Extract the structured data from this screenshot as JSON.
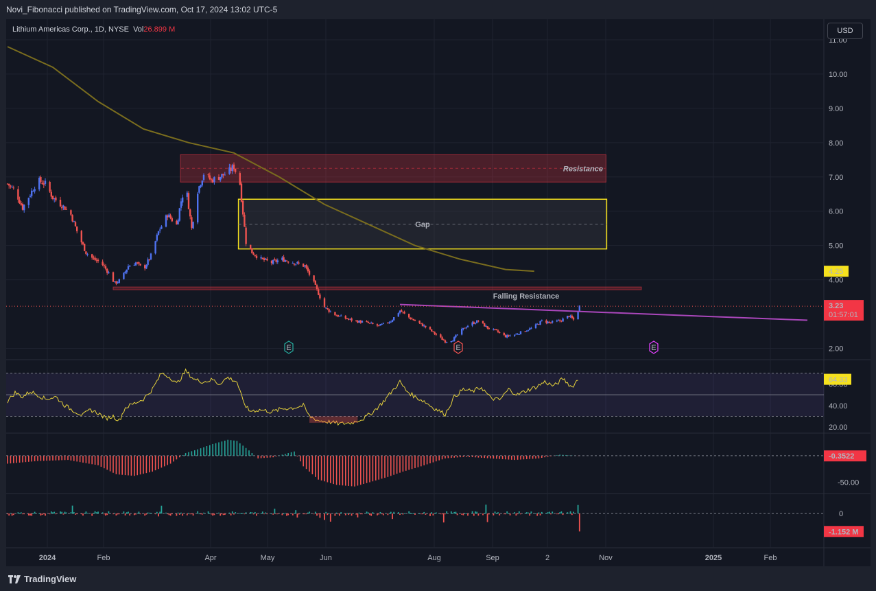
{
  "header": {
    "published": "Novi_Fibonacci published on TradingView.com, Oct 17, 2024 13:02 UTC-5"
  },
  "legend": {
    "symbol": "Lithium Americas Corp., 1D, NYSE",
    "vol_label": "Vol",
    "vol_value": "26.899 M"
  },
  "currency_button": "USD",
  "footer": {
    "logo_text": "TradingView"
  },
  "colors": {
    "up": "#4f72f0",
    "down": "#ef5350",
    "rsi": "#e6d23c",
    "ma": "#7a6d1e",
    "falling_resistance": "#ab47bc",
    "gap_box": "#f5e11e",
    "resistance_box": "#f23645",
    "hist_up": "#26a69a",
    "hist_down": "#ef5350"
  },
  "annotations": {
    "resistance_label": "Resistance",
    "gap_label": "Gap",
    "falling_resistance_label": "Falling Resistance",
    "earnings": [
      "E",
      "E",
      "E"
    ]
  },
  "chart_data": [
    {
      "type": "candlestick",
      "title": "Lithium Americas Corp., 1D, NYSE",
      "x_ticks": [
        "2024",
        "Feb",
        "Apr",
        "May",
        "Jun",
        "Aug",
        "Sep",
        "2",
        "Nov",
        "2025",
        "Feb"
      ],
      "y_ticks": [
        "11.00",
        "10.00",
        "9.00",
        "8.00",
        "7.00",
        "6.00",
        "5.00",
        "4.00",
        "2.00"
      ],
      "ylim": [
        1.75,
        11.2
      ],
      "price_path": [
        [
          0,
          6.8
        ],
        [
          5,
          6.6
        ],
        [
          10,
          6.1
        ],
        [
          15,
          6.5
        ],
        [
          20,
          6.9
        ],
        [
          25,
          6.8
        ],
        [
          30,
          6.4
        ],
        [
          38,
          6.1
        ],
        [
          42,
          5.9
        ],
        [
          47,
          5.3
        ],
        [
          52,
          4.8
        ],
        [
          57,
          4.6
        ],
        [
          62,
          4.5
        ],
        [
          67,
          4.2
        ],
        [
          71,
          3.9
        ],
        [
          75,
          4.0
        ],
        [
          80,
          4.4
        ],
        [
          85,
          4.5
        ],
        [
          90,
          4.3
        ],
        [
          95,
          4.7
        ],
        [
          100,
          5.4
        ],
        [
          106,
          5.9
        ],
        [
          112,
          5.6
        ],
        [
          115,
          6.3
        ],
        [
          118,
          6.8
        ],
        [
          122,
          5.5
        ],
        [
          126,
          6.6
        ],
        [
          130,
          7.1
        ],
        [
          135,
          6.9
        ],
        [
          140,
          7.0
        ],
        [
          145,
          7.1
        ],
        [
          150,
          7.3
        ],
        [
          154,
          6.8
        ],
        [
          158,
          5.1
        ],
        [
          162,
          4.8
        ],
        [
          168,
          4.6
        ],
        [
          175,
          4.5
        ],
        [
          182,
          4.6
        ],
        [
          190,
          4.5
        ],
        [
          197,
          4.4
        ],
        [
          202,
          4.0
        ],
        [
          206,
          3.6
        ],
        [
          210,
          3.2
        ],
        [
          216,
          3.0
        ],
        [
          222,
          2.9
        ],
        [
          230,
          2.8
        ],
        [
          238,
          2.75
        ],
        [
          246,
          2.65
        ],
        [
          254,
          2.8
        ],
        [
          260,
          3.1
        ],
        [
          266,
          2.9
        ],
        [
          272,
          2.75
        ],
        [
          278,
          2.6
        ],
        [
          284,
          2.4
        ],
        [
          290,
          2.2
        ],
        [
          295,
          2.25
        ],
        [
          300,
          2.5
        ],
        [
          306,
          2.7
        ],
        [
          312,
          2.8
        ],
        [
          318,
          2.6
        ],
        [
          324,
          2.5
        ],
        [
          330,
          2.35
        ],
        [
          336,
          2.4
        ],
        [
          342,
          2.5
        ],
        [
          348,
          2.6
        ],
        [
          354,
          2.8
        ],
        [
          360,
          2.75
        ],
        [
          366,
          2.8
        ],
        [
          372,
          2.95
        ],
        [
          376,
          2.8
        ],
        [
          379,
          3.23
        ]
      ],
      "ma_label": "",
      "ma_path": [
        [
          0,
          10.8
        ],
        [
          30,
          10.2
        ],
        [
          60,
          9.2
        ],
        [
          90,
          8.4
        ],
        [
          120,
          8.0
        ],
        [
          150,
          7.7
        ],
        [
          180,
          7.0
        ],
        [
          210,
          6.2
        ],
        [
          240,
          5.6
        ],
        [
          270,
          5.0
        ],
        [
          300,
          4.6
        ],
        [
          330,
          4.3
        ],
        [
          349,
          4.25
        ]
      ],
      "horizontal_levels": {
        "current_price": 3.23,
        "ma_value": 4.25,
        "support_line_a": 3.79,
        "support_line_b": 3.71
      },
      "price_labels": {
        "current": "3.23",
        "countdown": "01:57:01",
        "ma": "4.25"
      },
      "resistance_zone": [
        6.85,
        7.65
      ],
      "gap_zone": [
        4.9,
        6.35
      ],
      "falling_resistance": {
        "from": [
          260,
          3.28
        ],
        "to": [
          530,
          2.82
        ]
      }
    },
    {
      "type": "line",
      "name": "RSI",
      "y_ticks": [
        "60.00",
        "40.00",
        "20.00"
      ],
      "ylim": [
        15,
        80
      ],
      "band": [
        30,
        70
      ],
      "midline": 50,
      "last_value_label": "64.33",
      "values_path": [
        [
          0,
          44
        ],
        [
          5,
          52
        ],
        [
          10,
          48
        ],
        [
          15,
          53
        ],
        [
          20,
          50
        ],
        [
          25,
          46
        ],
        [
          32,
          48
        ],
        [
          38,
          40
        ],
        [
          44,
          35
        ],
        [
          50,
          31
        ],
        [
          55,
          36
        ],
        [
          60,
          33
        ],
        [
          65,
          28
        ],
        [
          70,
          30
        ],
        [
          74,
          26
        ],
        [
          78,
          38
        ],
        [
          84,
          42
        ],
        [
          90,
          46
        ],
        [
          96,
          55
        ],
        [
          102,
          70
        ],
        [
          108,
          66
        ],
        [
          112,
          60
        ],
        [
          118,
          72
        ],
        [
          124,
          64
        ],
        [
          130,
          62
        ],
        [
          136,
          64
        ],
        [
          140,
          60
        ],
        [
          146,
          66
        ],
        [
          152,
          62
        ],
        [
          156,
          44
        ],
        [
          160,
          35
        ],
        [
          168,
          36
        ],
        [
          175,
          34
        ],
        [
          182,
          37
        ],
        [
          190,
          38
        ],
        [
          196,
          40
        ],
        [
          200,
          30
        ],
        [
          206,
          26
        ],
        [
          212,
          25
        ],
        [
          220,
          23
        ],
        [
          228,
          24
        ],
        [
          236,
          28
        ],
        [
          242,
          34
        ],
        [
          248,
          42
        ],
        [
          254,
          52
        ],
        [
          260,
          62
        ],
        [
          264,
          54
        ],
        [
          270,
          48
        ],
        [
          276,
          44
        ],
        [
          282,
          38
        ],
        [
          290,
          32
        ],
        [
          296,
          48
        ],
        [
          302,
          55
        ],
        [
          308,
          53
        ],
        [
          314,
          57
        ],
        [
          320,
          47
        ],
        [
          326,
          45
        ],
        [
          332,
          55
        ],
        [
          338,
          50
        ],
        [
          344,
          54
        ],
        [
          350,
          57
        ],
        [
          356,
          62
        ],
        [
          362,
          58
        ],
        [
          368,
          65
        ],
        [
          374,
          57
        ],
        [
          378,
          64.33
        ]
      ]
    },
    {
      "type": "bar",
      "name": "Oscillator",
      "y_ticks": [
        "-50.00"
      ],
      "ylim": [
        -70,
        40
      ],
      "zero_line": 0,
      "last_value_label": "-0.3522",
      "values_path": [
        [
          0,
          -15
        ],
        [
          20,
          -10
        ],
        [
          40,
          -8
        ],
        [
          60,
          -18
        ],
        [
          72,
          -35
        ],
        [
          84,
          -38
        ],
        [
          96,
          -30
        ],
        [
          108,
          -15
        ],
        [
          118,
          5
        ],
        [
          126,
          12
        ],
        [
          136,
          22
        ],
        [
          146,
          30
        ],
        [
          152,
          28
        ],
        [
          160,
          10
        ],
        [
          166,
          -5
        ],
        [
          176,
          -3
        ],
        [
          182,
          2
        ],
        [
          190,
          8
        ],
        [
          196,
          -20
        ],
        [
          206,
          -45
        ],
        [
          218,
          -55
        ],
        [
          230,
          -58
        ],
        [
          240,
          -50
        ],
        [
          252,
          -40
        ],
        [
          262,
          -30
        ],
        [
          274,
          -20
        ],
        [
          290,
          -5
        ],
        [
          304,
          -2
        ],
        [
          320,
          -5
        ],
        [
          336,
          -8
        ],
        [
          352,
          -5
        ],
        [
          366,
          2
        ],
        [
          378,
          -0.35
        ]
      ]
    },
    {
      "type": "bar",
      "name": "Volume delta",
      "y_ticks": [
        "0"
      ],
      "ylim": [
        -2.2,
        1.2
      ],
      "zero_line": 0,
      "last_value_label": "-1.152 M"
    }
  ]
}
